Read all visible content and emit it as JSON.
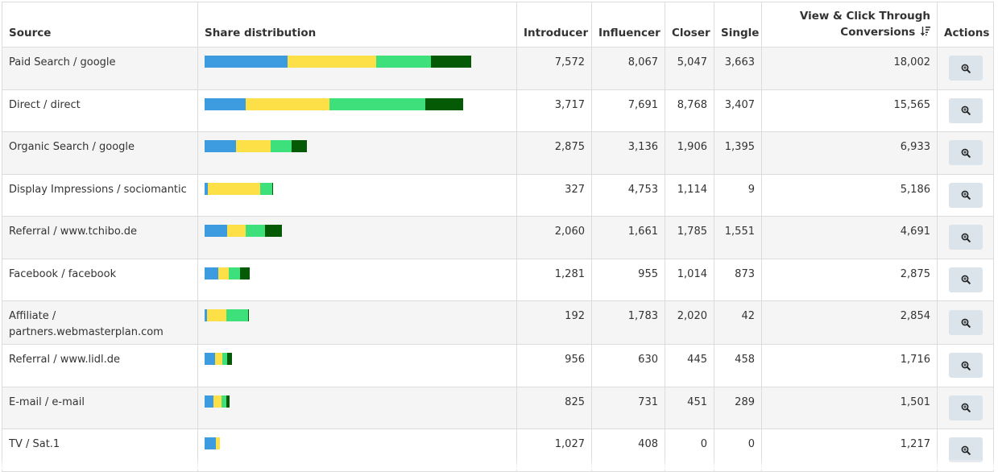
{
  "columns": {
    "source": "Source",
    "share": "Share distribution",
    "introducer": "Introducer",
    "influencer": "Influencer",
    "closer": "Closer",
    "single": "Single",
    "conversions_line1": "View & Click Through",
    "conversions_line2": "Conversions",
    "actions": "Actions"
  },
  "icons": {
    "sort": "sort-descending-icon",
    "zoom": "zoom-in-icon"
  },
  "colors": {
    "introducer": "#3d9be0",
    "influencer": "#fde047",
    "closer": "#3ee07b",
    "single": "#055a05",
    "action_button": "#dbe4ea",
    "stripe": "#f5f5f5"
  },
  "rows": [
    {
      "source": "Paid Search / google",
      "introducer": "7,572",
      "influencer": "8,067",
      "closer": "5,047",
      "single": "3,663",
      "conversions": "18,002"
    },
    {
      "source": "Direct / direct",
      "introducer": "3,717",
      "influencer": "7,691",
      "closer": "8,768",
      "single": "3,407",
      "conversions": "15,565"
    },
    {
      "source": "Organic Search / google",
      "introducer": "2,875",
      "influencer": "3,136",
      "closer": "1,906",
      "single": "1,395",
      "conversions": "6,933"
    },
    {
      "source": "Display Impressions / sociomantic",
      "introducer": "327",
      "influencer": "4,753",
      "closer": "1,114",
      "single": "9",
      "conversions": "5,186"
    },
    {
      "source": "Referral / www.tchibo.de",
      "introducer": "2,060",
      "influencer": "1,661",
      "closer": "1,785",
      "single": "1,551",
      "conversions": "4,691"
    },
    {
      "source": "Facebook / facebook",
      "introducer": "1,281",
      "influencer": "955",
      "closer": "1,014",
      "single": "873",
      "conversions": "2,875"
    },
    {
      "source": "Affiliate / partners.webmasterplan.com",
      "introducer": "192",
      "influencer": "1,783",
      "closer": "2,020",
      "single": "42",
      "conversions": "2,854"
    },
    {
      "source": "Referral / www.lidl.de",
      "introducer": "956",
      "influencer": "630",
      "closer": "445",
      "single": "458",
      "conversions": "1,716"
    },
    {
      "source": "E-mail / e-mail",
      "introducer": "825",
      "influencer": "731",
      "closer": "451",
      "single": "289",
      "conversions": "1,501"
    },
    {
      "source": "TV / Sat.1",
      "introducer": "1,027",
      "influencer": "408",
      "closer": "0",
      "single": "0",
      "conversions": "1,217"
    }
  ]
}
